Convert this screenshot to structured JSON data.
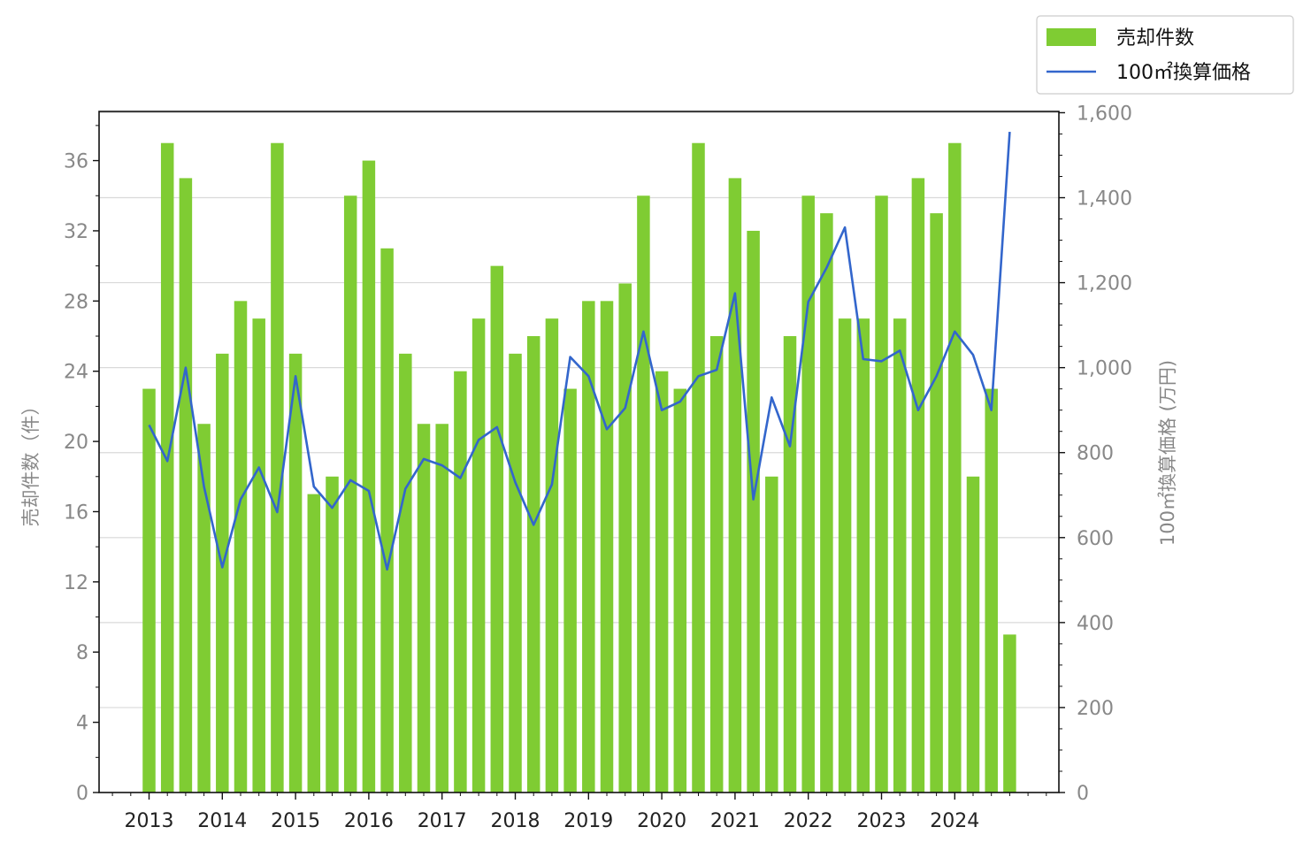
{
  "chart_data": {
    "type": "bar",
    "ylabel": "売却件数（件）",
    "y2label": "100㎡換算価格 (万円)",
    "ylim": [
      0,
      38.8
    ],
    "y2lim": [
      0,
      1603
    ],
    "yticks": [
      "0",
      "4",
      "8",
      "12",
      "16",
      "20",
      "24",
      "28",
      "32",
      "36"
    ],
    "y2ticks": [
      "0",
      "200",
      "400",
      "600",
      "800",
      "1,000",
      "1,200",
      "1,400",
      "1,600"
    ],
    "xticks": [
      "2013",
      "2014",
      "2015",
      "2016",
      "2017",
      "2018",
      "2019",
      "2020",
      "2021",
      "2022",
      "2023",
      "2024"
    ],
    "grid": "horizontal (secondary axis)",
    "legend": "top-right (outside)",
    "colors": {
      "bars": "#7fcc33",
      "line": "#3366cc",
      "grid": "#d9d9d9"
    },
    "series": [
      {
        "name": "売却件数",
        "type": "bar",
        "axis": "left",
        "values": [
          23,
          37,
          35,
          21,
          25,
          28,
          27,
          37,
          25,
          17,
          18,
          34,
          36,
          31,
          25,
          21,
          21,
          24,
          27,
          30,
          25,
          26,
          27,
          23,
          28,
          28,
          29,
          34,
          24,
          23,
          37,
          26,
          35,
          32,
          18,
          26,
          34,
          33,
          27,
          27,
          34,
          27,
          35,
          33,
          37,
          18,
          23,
          9
        ]
      },
      {
        "name": "100㎡換算価格",
        "type": "line",
        "axis": "right",
        "values": [
          865,
          780,
          1000,
          720,
          530,
          690,
          765,
          660,
          980,
          720,
          670,
          735,
          710,
          525,
          715,
          785,
          770,
          740,
          830,
          860,
          730,
          630,
          725,
          1025,
          980,
          855,
          905,
          1085,
          900,
          920,
          980,
          995,
          1175,
          690,
          930,
          815,
          1155,
          1235,
          1330,
          1020,
          1015,
          1040,
          900,
          980,
          1085,
          1030,
          900,
          1555
        ]
      }
    ]
  }
}
